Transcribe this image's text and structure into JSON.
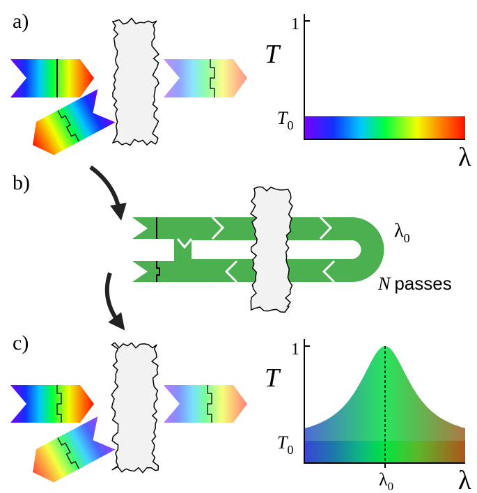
{
  "panels": [
    {
      "label": "a)",
      "plot": {
        "y_axis_label": "T",
        "y_top": "1",
        "y_base": {
          "main": "T",
          "sub": "0"
        },
        "x_axis_label": "λ"
      }
    },
    {
      "label": "b)",
      "wavelength": {
        "main": "λ",
        "sub": "0"
      },
      "passes": {
        "n": "N",
        "text": "passes"
      }
    },
    {
      "label": "c)",
      "plot": {
        "y_axis_label": "T",
        "y_top": "1",
        "y_base": {
          "main": "T",
          "sub": "0"
        },
        "x_axis_label": "λ",
        "x_tick": {
          "main": "λ",
          "sub": "0"
        }
      }
    }
  ]
}
